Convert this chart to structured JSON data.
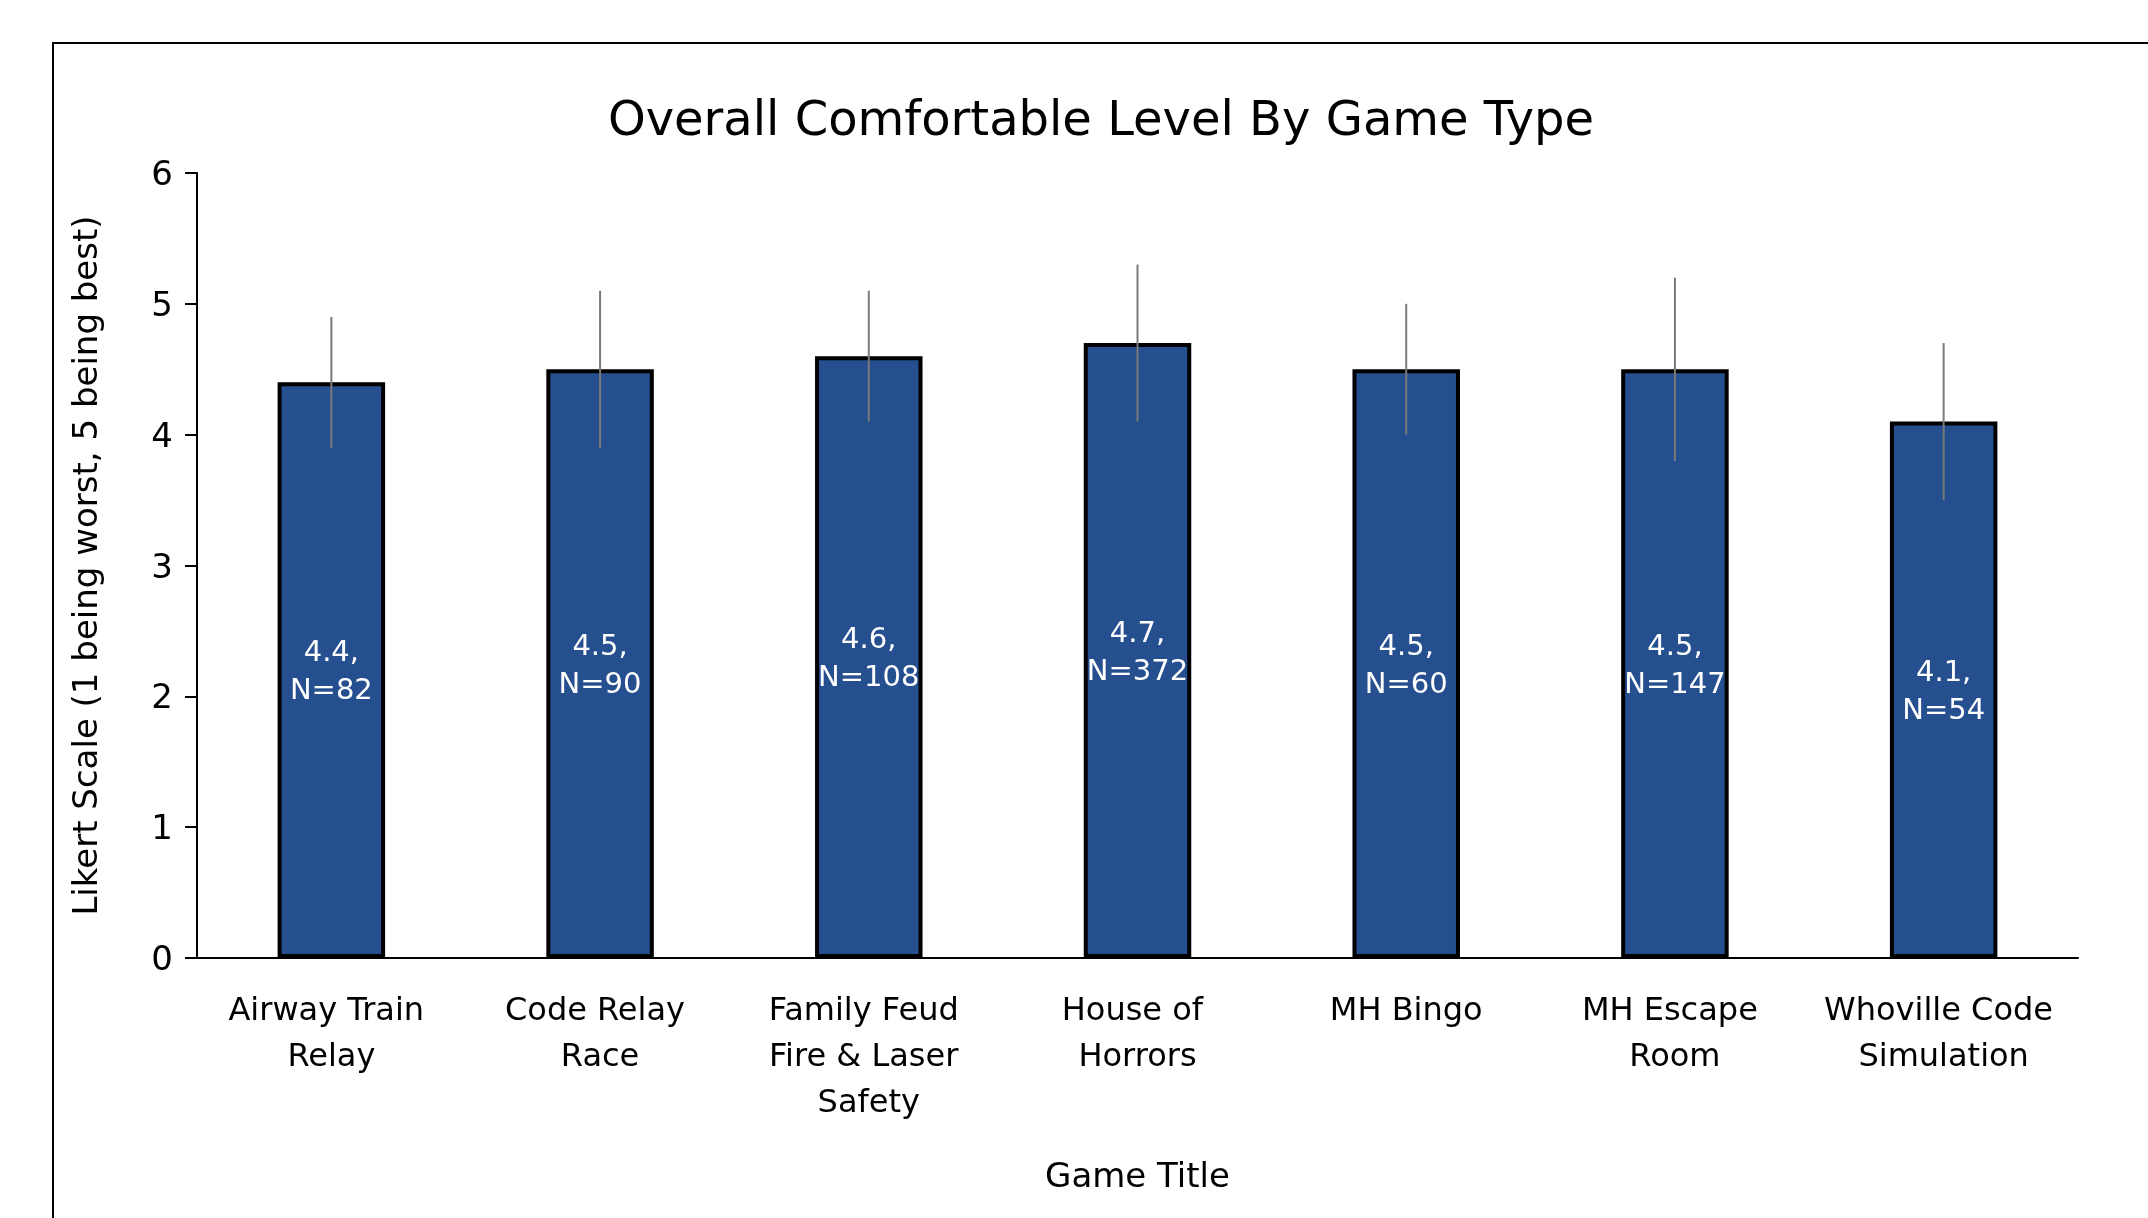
{
  "chart_data": {
    "type": "bar",
    "title": "Overall Comfortable Level By Game Type",
    "xlabel": "Game Title",
    "ylabel": "Likert Scale (1 being worst, 5 being best)",
    "categories": [
      "Airway Train Relay",
      "Code Relay Race",
      "Family Feud Fire & Laser Safety",
      "House of Horrors",
      "MH Bingo",
      "MH Escape Room",
      "Whoville Code Simulation"
    ],
    "values": [
      4.4,
      4.5,
      4.6,
      4.7,
      4.5,
      4.5,
      4.1
    ],
    "errors": [
      0.5,
      0.6,
      0.5,
      0.6,
      0.5,
      0.7,
      0.6
    ],
    "value_labels": [
      "4.4,\nN=82",
      "4.5,\nN=90",
      "4.6,\nN=108",
      "4.7,\nN=372",
      "4.5,\nN=60",
      "4.5,\nN=147",
      "4.1,\nN=54"
    ],
    "color": "#254f8f",
    "ylim": [
      0,
      6
    ],
    "yticks": [
      0,
      1,
      2,
      3,
      4,
      5,
      6
    ],
    "grid": false
  }
}
